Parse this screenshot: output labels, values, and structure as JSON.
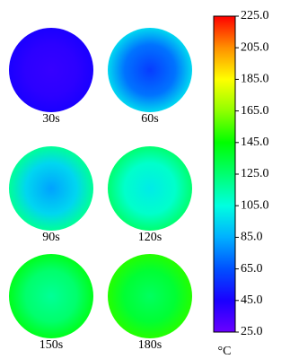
{
  "chart_data": {
    "type": "heatmap",
    "panels": [
      {
        "label": "30s",
        "center": 38,
        "edge": 45
      },
      {
        "label": "60s",
        "center": 60,
        "edge": 95
      },
      {
        "label": "90s",
        "center": 82,
        "edge": 118
      },
      {
        "label": "120s",
        "center": 100,
        "edge": 125
      },
      {
        "label": "150s",
        "center": 118,
        "edge": 140
      },
      {
        "label": "180s",
        "center": 128,
        "edge": 150
      }
    ],
    "ylim": [
      25,
      225
    ],
    "yticks": [
      {
        "value": 25,
        "label": "25.0"
      },
      {
        "value": 45,
        "label": "45.0"
      },
      {
        "value": 65,
        "label": "65.0"
      },
      {
        "value": 85,
        "label": "85.0"
      },
      {
        "value": 105,
        "label": "105.0"
      },
      {
        "value": 125,
        "label": "125.0"
      },
      {
        "value": 145,
        "label": "145.0"
      },
      {
        "value": 165,
        "label": "165.0"
      },
      {
        "value": 185,
        "label": "185.0"
      },
      {
        "value": 205,
        "label": "205.0"
      },
      {
        "value": 225,
        "label": "225.0"
      }
    ],
    "unit": "°C",
    "colormap": [
      "#6a00ff",
      "#1a00ff",
      "#0050ff",
      "#00b0ff",
      "#00ffe0",
      "#00ff70",
      "#00ff00",
      "#90ff00",
      "#ffff00",
      "#ff9000",
      "#ff0000"
    ]
  }
}
